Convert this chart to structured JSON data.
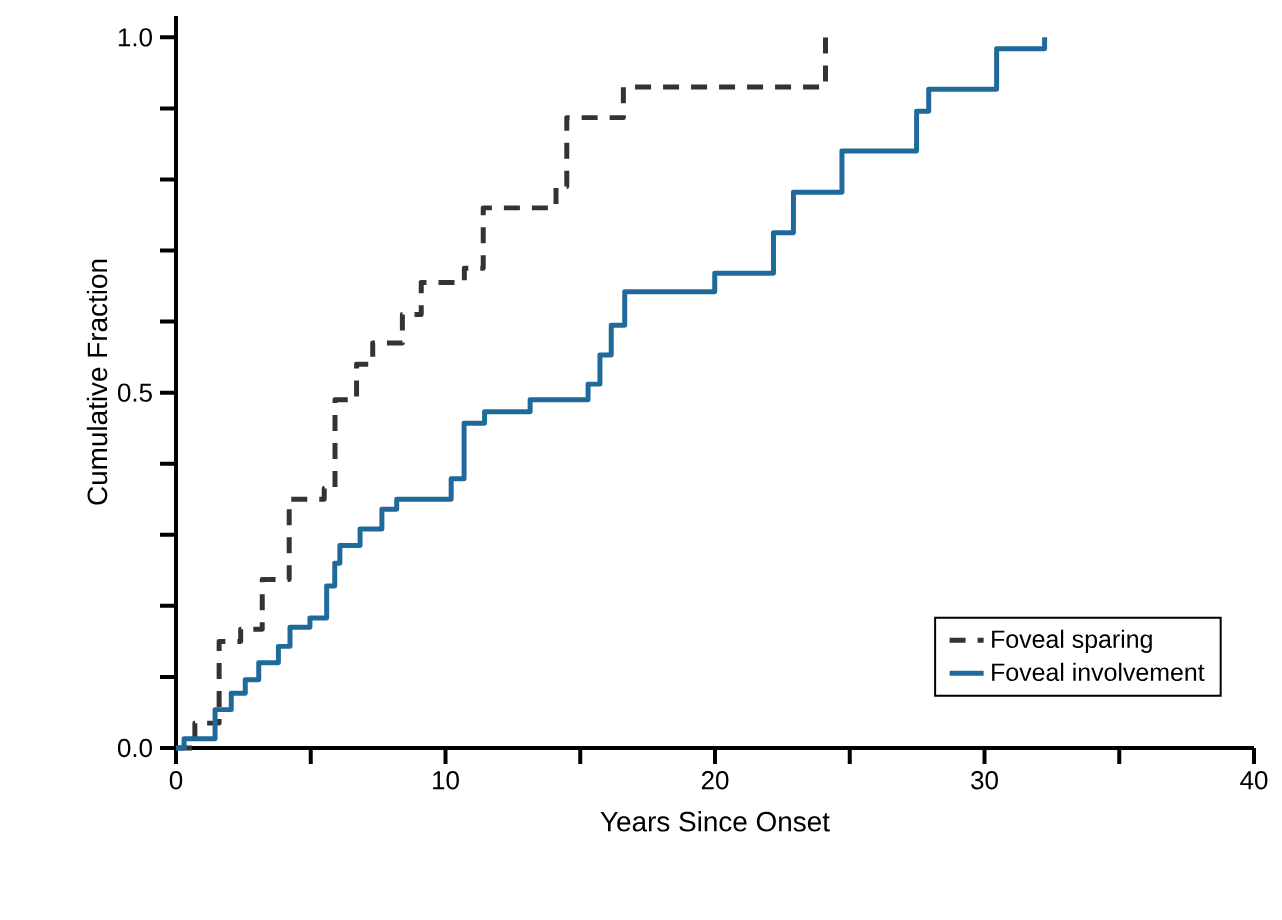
{
  "chart_data": {
    "type": "step",
    "xlabel": "Years Since Onset",
    "ylabel": "Cumulative Fraction",
    "xlim": [
      0,
      40
    ],
    "ylim": [
      0,
      1.03
    ],
    "xticks": [
      0,
      {
        "value": 5,
        "label": null
      },
      10,
      {
        "value": 15,
        "label": null
      },
      20,
      {
        "value": 25,
        "label": null
      },
      30,
      {
        "value": 35,
        "label": null
      },
      40
    ],
    "yticks": [
      {
        "value": 0,
        "label": "0.0"
      },
      {
        "value": 0.1,
        "label": null
      },
      {
        "value": 0.2,
        "label": null
      },
      {
        "value": 0.3,
        "label": null
      },
      {
        "value": 0.4,
        "label": null
      },
      {
        "value": 0.5,
        "label": "0.5"
      },
      {
        "value": 0.6,
        "label": null
      },
      {
        "value": 0.7,
        "label": null
      },
      {
        "value": 0.8,
        "label": null
      },
      {
        "value": 0.9,
        "label": null
      },
      {
        "value": 1,
        "label": "1.0"
      }
    ],
    "legend": "bottom right",
    "grid": false,
    "marker": "none",
    "series": [
      {
        "name": "Foveal sparing",
        "color": "#333333",
        "line_style": "dashed",
        "x": [
          0,
          0.7,
          1.6,
          2.4,
          3.2,
          4.2,
          5.5,
          5.9,
          6.7,
          7.3,
          8.4,
          9.1,
          10.7,
          11.4,
          14.1,
          14.5,
          16.6,
          24.1
        ],
        "values": [
          0,
          0.035,
          0.15,
          0.167,
          0.237,
          0.35,
          0.365,
          0.49,
          0.54,
          0.57,
          0.61,
          0.655,
          0.675,
          0.76,
          0.79,
          0.887,
          0.93,
          1.0
        ]
      },
      {
        "name": "Foveal involvement",
        "color": "#1f6a9a",
        "line_style": "solid",
        "x": [
          0,
          0.3,
          1.45,
          2.05,
          2.57,
          3.07,
          3.8,
          4.23,
          4.97,
          5.59,
          5.89,
          6.08,
          6.83,
          7.64,
          8.19,
          10.21,
          10.69,
          11.45,
          13.14,
          15.29,
          15.73,
          16.15,
          16.65,
          19.99,
          22.17,
          22.91,
          24.71,
          27.48,
          27.93,
          30.45,
          32.23
        ],
        "values": [
          0,
          0.013,
          0.054,
          0.077,
          0.096,
          0.12,
          0.143,
          0.17,
          0.183,
          0.228,
          0.26,
          0.285,
          0.308,
          0.336,
          0.35,
          0.379,
          0.457,
          0.473,
          0.49,
          0.512,
          0.553,
          0.595,
          0.642,
          0.668,
          0.725,
          0.782,
          0.84,
          0.896,
          0.927,
          0.984,
          1.0
        ]
      }
    ]
  }
}
